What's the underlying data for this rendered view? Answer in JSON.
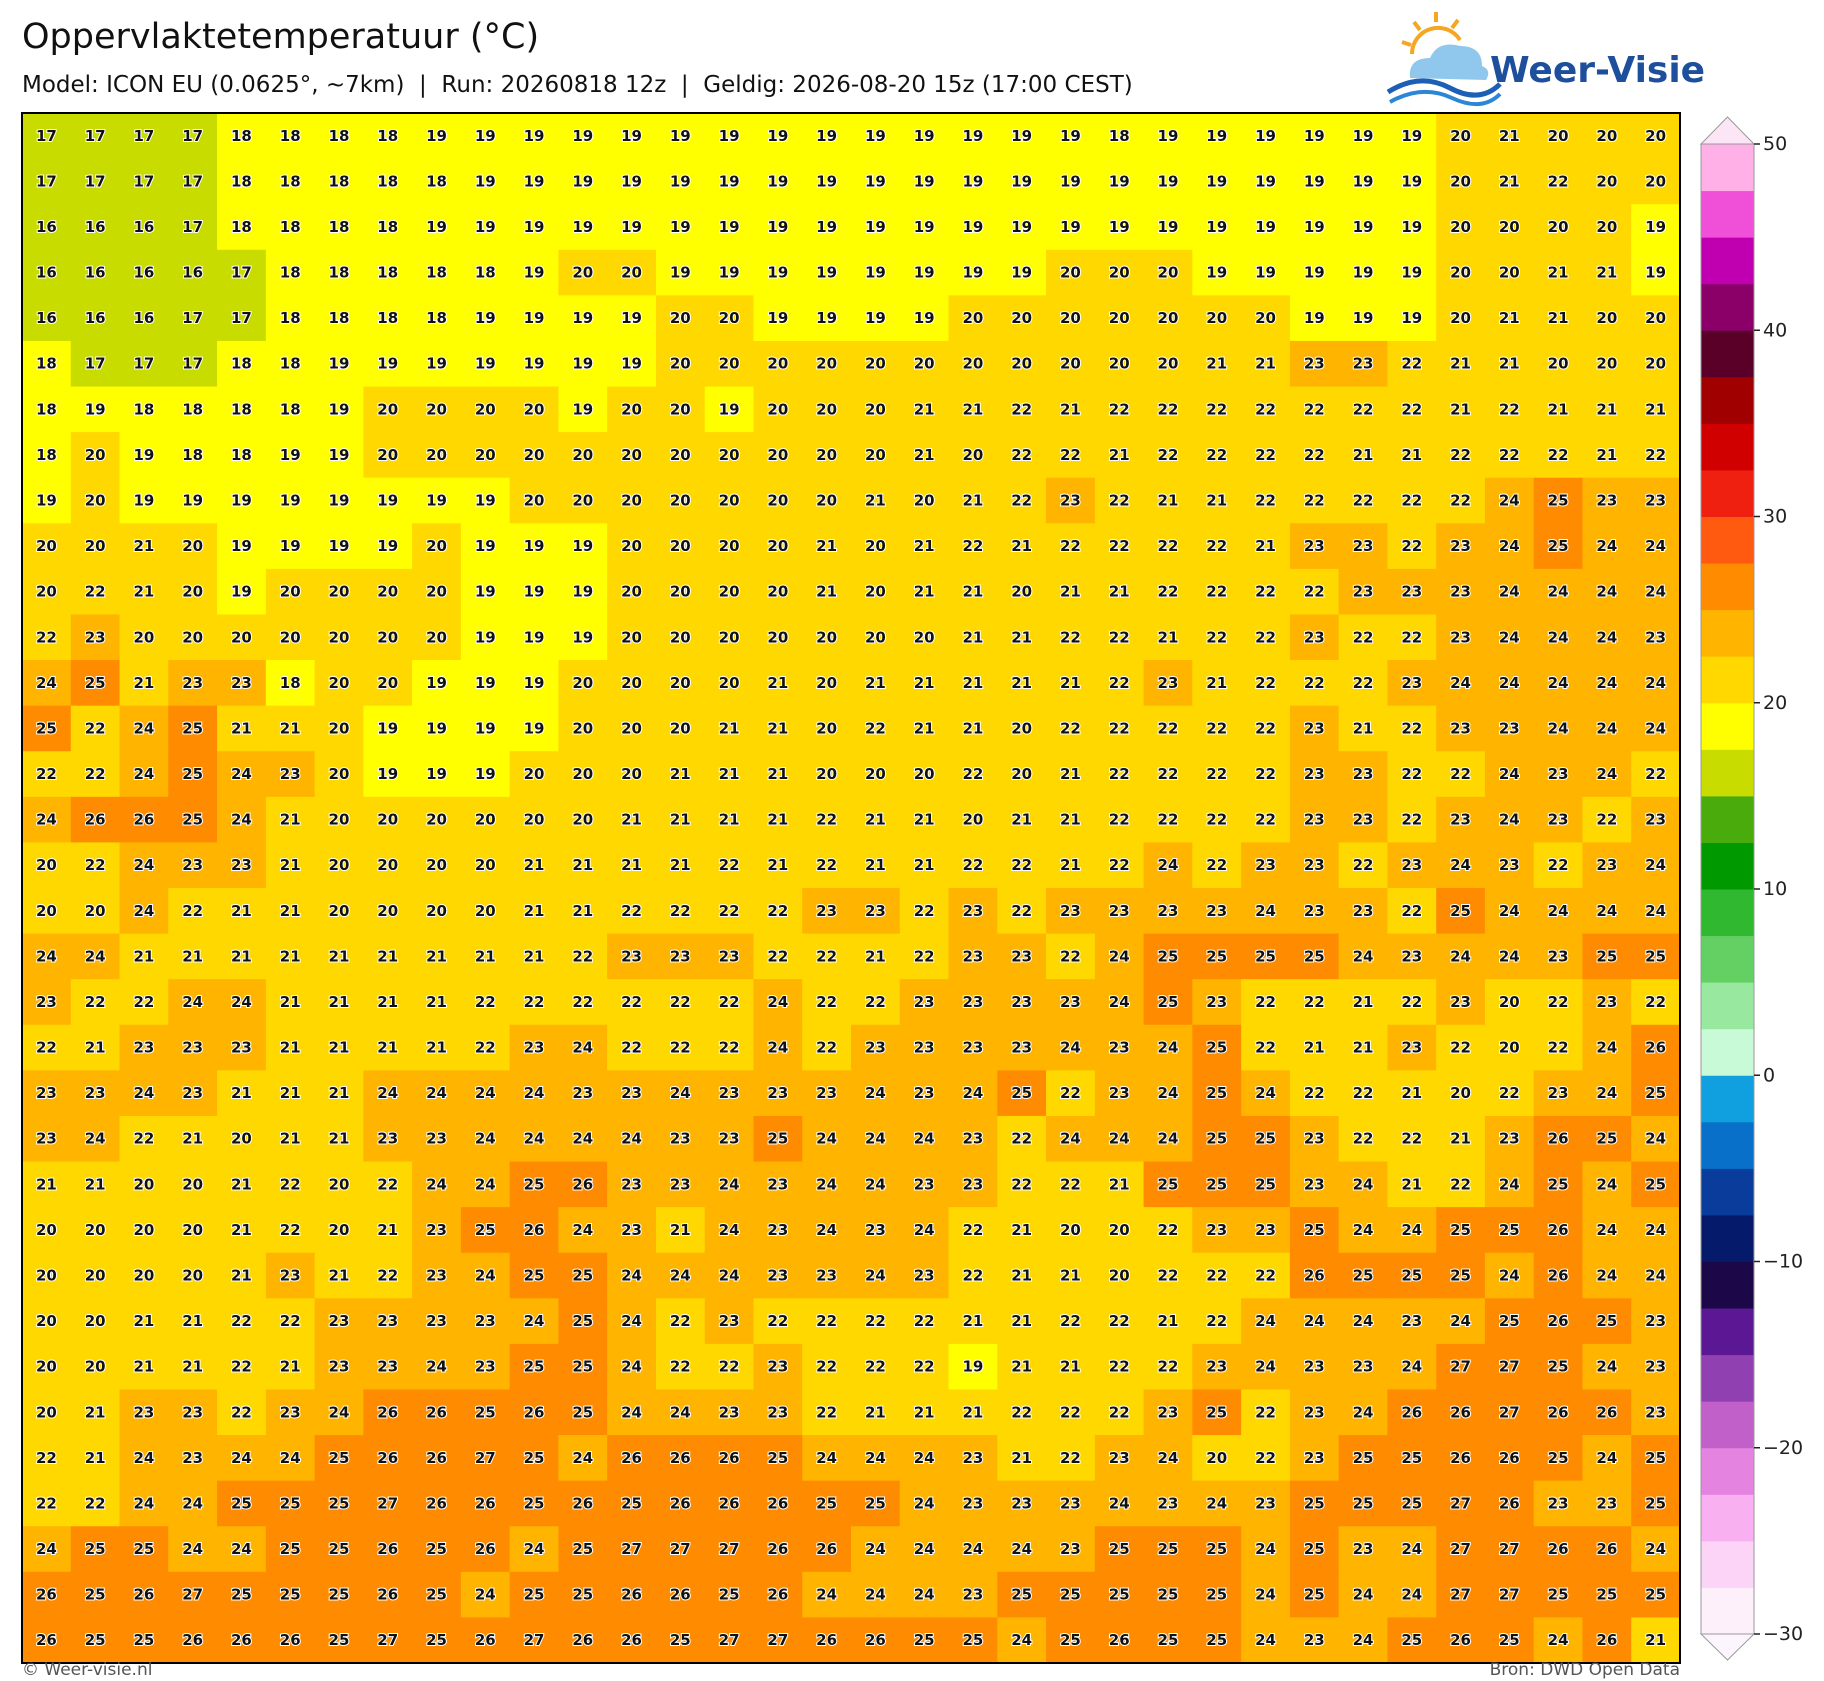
{
  "header": {
    "title": "Oppervlaktetemperatuur (°C)",
    "subtitle": "Model: ICON EU (0.0625°, ~7km)  |  Run: 20260818 12z  |  Geldig: 2026-08-20 15z (17:00 CEST)",
    "logo": "Weer-Visie"
  },
  "map": {
    "values": [
      [
        17,
        17,
        17,
        17,
        18,
        18,
        18,
        18,
        19,
        19,
        19,
        19,
        19,
        19,
        19,
        19,
        19,
        19,
        19,
        19,
        19,
        19,
        18,
        19,
        19,
        19,
        19,
        19,
        19,
        20,
        21,
        20,
        20,
        20
      ],
      [
        17,
        17,
        17,
        17,
        18,
        18,
        18,
        18,
        18,
        19,
        19,
        19,
        19,
        19,
        19,
        19,
        19,
        19,
        19,
        19,
        19,
        19,
        19,
        19,
        19,
        19,
        19,
        19,
        19,
        20,
        21,
        22,
        20,
        20
      ],
      [
        16,
        16,
        16,
        17,
        18,
        18,
        18,
        18,
        19,
        19,
        19,
        19,
        19,
        19,
        19,
        19,
        19,
        19,
        19,
        19,
        19,
        19,
        19,
        19,
        19,
        19,
        19,
        19,
        19,
        20,
        20,
        20,
        20,
        19
      ],
      [
        16,
        16,
        16,
        16,
        17,
        18,
        18,
        18,
        18,
        18,
        19,
        20,
        20,
        19,
        19,
        19,
        19,
        19,
        19,
        19,
        19,
        20,
        20,
        20,
        19,
        19,
        19,
        19,
        19,
        20,
        20,
        21,
        21,
        19
      ],
      [
        16,
        16,
        16,
        17,
        17,
        18,
        18,
        18,
        18,
        19,
        19,
        19,
        19,
        20,
        20,
        19,
        19,
        19,
        19,
        20,
        20,
        20,
        20,
        20,
        20,
        20,
        19,
        19,
        19,
        20,
        21,
        21,
        20,
        20
      ],
      [
        18,
        17,
        17,
        17,
        18,
        18,
        19,
        19,
        19,
        19,
        19,
        19,
        19,
        20,
        20,
        20,
        20,
        20,
        20,
        20,
        20,
        20,
        20,
        20,
        21,
        21,
        23,
        23,
        22,
        21,
        21,
        20,
        20,
        20
      ],
      [
        18,
        19,
        18,
        18,
        18,
        18,
        19,
        20,
        20,
        20,
        20,
        19,
        20,
        20,
        19,
        20,
        20,
        20,
        21,
        21,
        22,
        21,
        22,
        22,
        22,
        22,
        22,
        22,
        22,
        21,
        22,
        21,
        21,
        21
      ],
      [
        18,
        20,
        19,
        18,
        18,
        19,
        19,
        20,
        20,
        20,
        20,
        20,
        20,
        20,
        20,
        20,
        20,
        20,
        21,
        20,
        22,
        22,
        21,
        22,
        22,
        22,
        22,
        21,
        21,
        22,
        22,
        22,
        21,
        22
      ],
      [
        19,
        20,
        19,
        19,
        19,
        19,
        19,
        19,
        19,
        19,
        20,
        20,
        20,
        20,
        20,
        20,
        20,
        21,
        20,
        21,
        22,
        23,
        22,
        21,
        21,
        22,
        22,
        22,
        22,
        22,
        24,
        25,
        23,
        23
      ],
      [
        20,
        20,
        21,
        20,
        19,
        19,
        19,
        19,
        20,
        19,
        19,
        19,
        20,
        20,
        20,
        20,
        21,
        20,
        21,
        22,
        21,
        22,
        22,
        22,
        22,
        21,
        23,
        23,
        22,
        23,
        24,
        25,
        24,
        24
      ],
      [
        20,
        22,
        21,
        20,
        19,
        20,
        20,
        20,
        20,
        19,
        19,
        19,
        20,
        20,
        20,
        20,
        21,
        20,
        21,
        21,
        20,
        21,
        21,
        22,
        22,
        22,
        22,
        23,
        23,
        23,
        24,
        24,
        24,
        24
      ],
      [
        22,
        23,
        20,
        20,
        20,
        20,
        20,
        20,
        20,
        19,
        19,
        19,
        20,
        20,
        20,
        20,
        20,
        20,
        20,
        21,
        21,
        22,
        22,
        21,
        22,
        22,
        23,
        22,
        22,
        23,
        24,
        24,
        24,
        23
      ],
      [
        24,
        25,
        21,
        23,
        23,
        18,
        20,
        20,
        19,
        19,
        19,
        20,
        20,
        20,
        20,
        21,
        20,
        21,
        21,
        21,
        21,
        21,
        22,
        23,
        21,
        22,
        22,
        22,
        23,
        24,
        24,
        24,
        24,
        24
      ],
      [
        25,
        22,
        24,
        25,
        21,
        21,
        20,
        19,
        19,
        19,
        19,
        20,
        20,
        20,
        21,
        21,
        20,
        22,
        21,
        21,
        20,
        22,
        22,
        22,
        22,
        22,
        23,
        21,
        22,
        23,
        23,
        24,
        24,
        24
      ],
      [
        22,
        22,
        24,
        25,
        24,
        23,
        20,
        19,
        19,
        19,
        20,
        20,
        20,
        21,
        21,
        21,
        20,
        20,
        20,
        22,
        20,
        21,
        22,
        22,
        22,
        22,
        23,
        23,
        22,
        22,
        24,
        23,
        24,
        22
      ],
      [
        24,
        26,
        26,
        25,
        24,
        21,
        20,
        20,
        20,
        20,
        20,
        20,
        21,
        21,
        21,
        21,
        22,
        21,
        21,
        20,
        21,
        21,
        22,
        22,
        22,
        22,
        23,
        23,
        22,
        23,
        24,
        23,
        22,
        23
      ],
      [
        20,
        22,
        24,
        23,
        23,
        21,
        20,
        20,
        20,
        20,
        21,
        21,
        21,
        21,
        22,
        21,
        22,
        21,
        21,
        22,
        22,
        21,
        22,
        24,
        22,
        23,
        23,
        22,
        23,
        24,
        23,
        22,
        23,
        24
      ],
      [
        20,
        20,
        24,
        22,
        21,
        21,
        20,
        20,
        20,
        20,
        21,
        21,
        22,
        22,
        22,
        22,
        23,
        23,
        22,
        23,
        22,
        23,
        23,
        23,
        23,
        24,
        23,
        23,
        22,
        25,
        24,
        24,
        24,
        24
      ],
      [
        24,
        24,
        21,
        21,
        21,
        21,
        21,
        21,
        21,
        21,
        21,
        22,
        23,
        23,
        23,
        22,
        22,
        21,
        22,
        23,
        23,
        22,
        24,
        25,
        25,
        25,
        25,
        24,
        23,
        24,
        24,
        23,
        25,
        25
      ],
      [
        23,
        22,
        22,
        24,
        24,
        21,
        21,
        21,
        21,
        22,
        22,
        22,
        22,
        22,
        22,
        24,
        22,
        22,
        23,
        23,
        23,
        23,
        24,
        25,
        23,
        22,
        22,
        21,
        22,
        23,
        20,
        22,
        23,
        22
      ],
      [
        22,
        21,
        23,
        23,
        23,
        21,
        21,
        21,
        21,
        22,
        23,
        24,
        22,
        22,
        22,
        24,
        22,
        23,
        23,
        23,
        23,
        24,
        23,
        24,
        25,
        22,
        21,
        21,
        23,
        22,
        20,
        22,
        24,
        26
      ],
      [
        23,
        23,
        24,
        23,
        21,
        21,
        21,
        24,
        24,
        24,
        24,
        23,
        23,
        24,
        23,
        23,
        23,
        24,
        23,
        24,
        25,
        22,
        23,
        24,
        25,
        24,
        22,
        22,
        21,
        20,
        22,
        23,
        24,
        25
      ],
      [
        23,
        24,
        22,
        21,
        20,
        21,
        21,
        23,
        23,
        24,
        24,
        24,
        24,
        23,
        23,
        25,
        24,
        24,
        24,
        23,
        22,
        24,
        24,
        24,
        25,
        25,
        23,
        22,
        22,
        21,
        23,
        26,
        25,
        24
      ],
      [
        21,
        21,
        20,
        20,
        21,
        22,
        20,
        22,
        24,
        24,
        25,
        26,
        23,
        23,
        24,
        23,
        24,
        24,
        23,
        23,
        22,
        22,
        21,
        25,
        25,
        25,
        23,
        24,
        21,
        22,
        24,
        25,
        24,
        25
      ],
      [
        20,
        20,
        20,
        20,
        21,
        22,
        20,
        21,
        23,
        25,
        26,
        24,
        23,
        21,
        24,
        23,
        24,
        23,
        24,
        22,
        21,
        20,
        20,
        22,
        23,
        23,
        25,
        24,
        24,
        25,
        25,
        26,
        24,
        24
      ],
      [
        20,
        20,
        20,
        20,
        21,
        23,
        21,
        22,
        23,
        24,
        25,
        25,
        24,
        24,
        24,
        23,
        23,
        24,
        23,
        22,
        21,
        21,
        20,
        22,
        22,
        22,
        26,
        25,
        25,
        25,
        24,
        26,
        24,
        24
      ],
      [
        20,
        20,
        21,
        21,
        22,
        22,
        23,
        23,
        23,
        23,
        24,
        25,
        24,
        22,
        23,
        22,
        22,
        22,
        22,
        21,
        21,
        22,
        22,
        21,
        22,
        24,
        24,
        24,
        23,
        24,
        25,
        26,
        25,
        23
      ],
      [
        20,
        20,
        21,
        21,
        22,
        21,
        23,
        23,
        24,
        23,
        25,
        25,
        24,
        22,
        22,
        23,
        22,
        22,
        22,
        19,
        21,
        21,
        22,
        22,
        23,
        24,
        23,
        23,
        24,
        27,
        27,
        25,
        24,
        23
      ],
      [
        20,
        21,
        23,
        23,
        22,
        23,
        24,
        26,
        26,
        25,
        26,
        25,
        24,
        24,
        23,
        23,
        22,
        21,
        21,
        21,
        22,
        22,
        22,
        23,
        25,
        22,
        23,
        24,
        26,
        26,
        27,
        26,
        26,
        23
      ],
      [
        22,
        21,
        24,
        23,
        24,
        24,
        25,
        26,
        26,
        27,
        25,
        24,
        26,
        26,
        26,
        25,
        24,
        24,
        24,
        23,
        21,
        22,
        23,
        24,
        20,
        22,
        23,
        25,
        25,
        26,
        26,
        25,
        24,
        25
      ],
      [
        22,
        22,
        24,
        24,
        25,
        25,
        25,
        27,
        26,
        26,
        25,
        26,
        25,
        26,
        26,
        26,
        25,
        25,
        24,
        23,
        23,
        23,
        24,
        23,
        24,
        23,
        25,
        25,
        25,
        27,
        26,
        23,
        23,
        25
      ],
      [
        24,
        25,
        25,
        24,
        24,
        25,
        25,
        26,
        25,
        26,
        24,
        25,
        27,
        27,
        27,
        26,
        26,
        24,
        24,
        24,
        24,
        23,
        25,
        25,
        25,
        24,
        25,
        23,
        24,
        27,
        27,
        26,
        26,
        24
      ],
      [
        26,
        25,
        26,
        27,
        25,
        25,
        25,
        26,
        25,
        24,
        25,
        25,
        26,
        26,
        25,
        26,
        24,
        24,
        24,
        23,
        25,
        25,
        25,
        25,
        25,
        24,
        25,
        24,
        24,
        27,
        27,
        25,
        25,
        25
      ],
      [
        26,
        25,
        25,
        26,
        26,
        26,
        25,
        27,
        25,
        26,
        27,
        26,
        26,
        25,
        27,
        27,
        26,
        26,
        25,
        25,
        24,
        25,
        26,
        25,
        25,
        24,
        23,
        24,
        25,
        26,
        25,
        24,
        26,
        21
      ]
    ],
    "colorbar": {
      "lim": [
        -30,
        50
      ],
      "ticks": [
        {
          "value": -30,
          "label": "−30"
        },
        {
          "value": -20,
          "label": "−20"
        },
        {
          "value": -10,
          "label": "−10"
        },
        0,
        10,
        20,
        30,
        40,
        50
      ],
      "colors": [
        "#fdf0fb",
        "#fcd4f8",
        "#f8b0f0",
        "#e484e0",
        "#c060c8",
        "#9040b0",
        "#5c1894",
        "#1c0848",
        "#061a6c",
        "#0a3c9c",
        "#0870c8",
        "#10a0e0",
        "#c8fad8",
        "#98e8a0",
        "#64d064",
        "#30b830",
        "#009a00",
        "#4aac0c",
        "#c8dc00",
        "#ffff00",
        "#ffd800",
        "#ffb400",
        "#ff8c00",
        "#ff5a10",
        "#f02010",
        "#d00000",
        "#a00000",
        "#5a0028",
        "#8a0068",
        "#c000b0",
        "#f050d8",
        "#ffb0e6"
      ]
    }
  },
  "footer": {
    "copyright": "© Weer-visie.nl",
    "source": "Bron: DWD Open Data"
  }
}
